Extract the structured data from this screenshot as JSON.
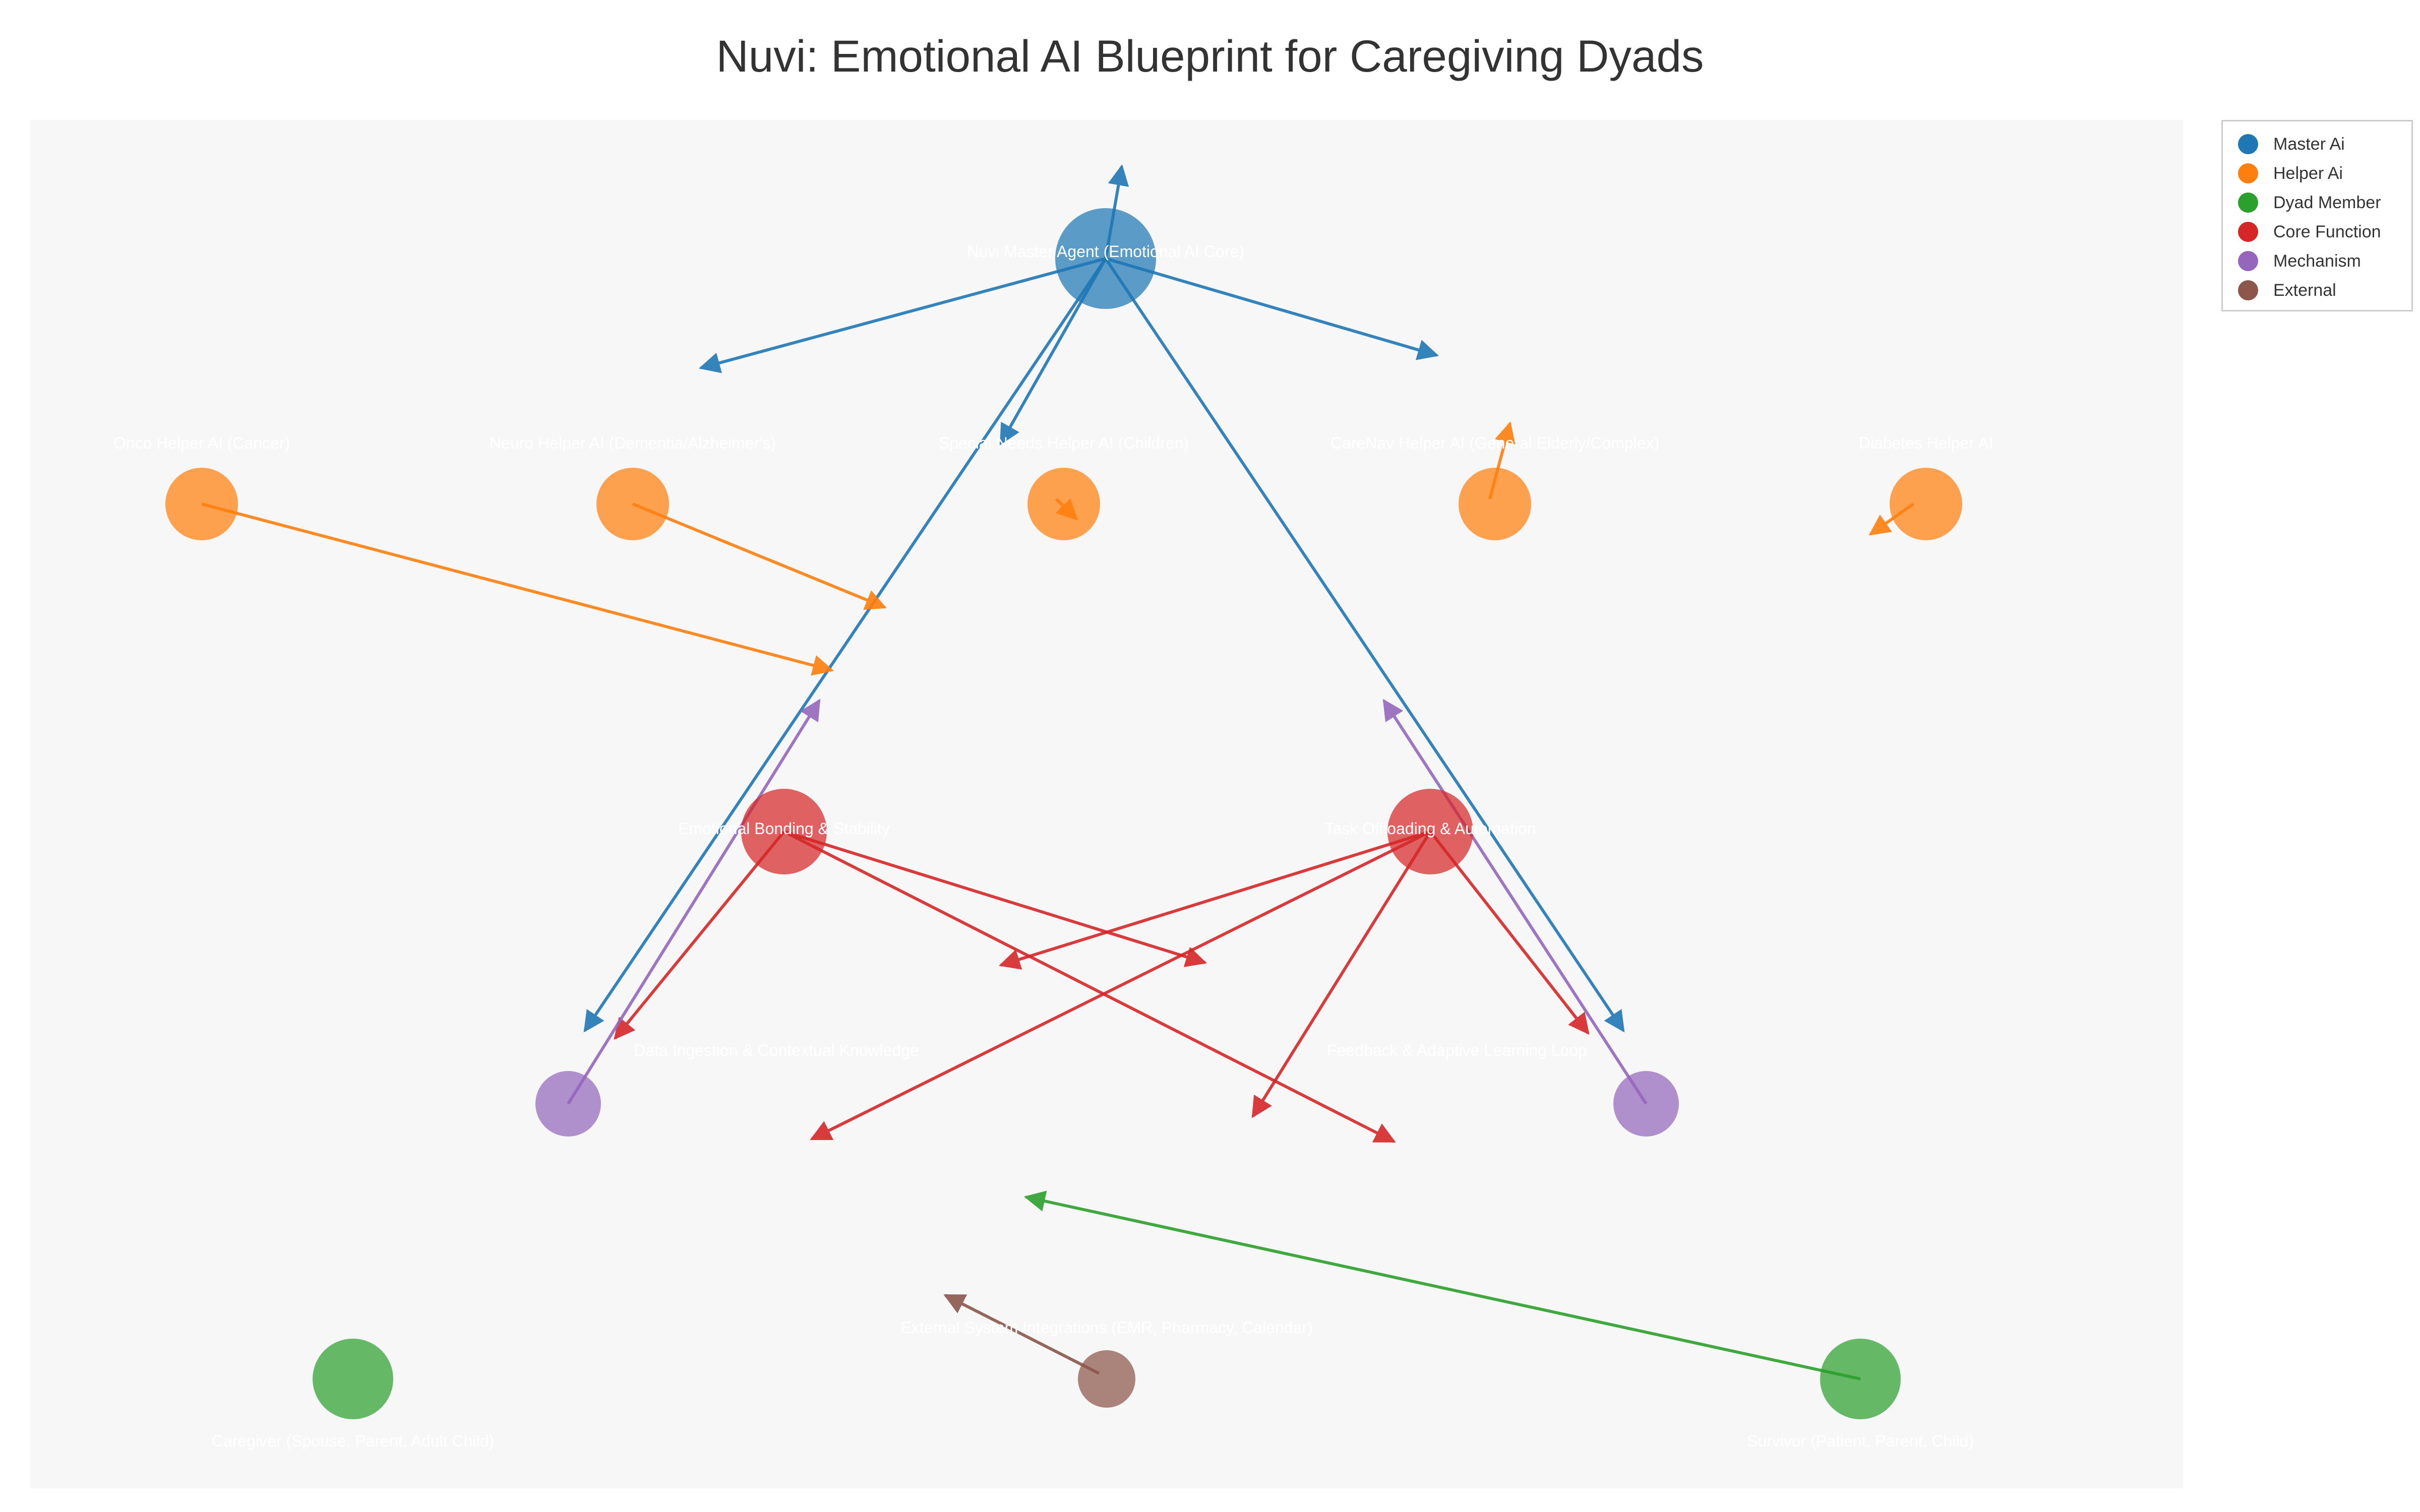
{
  "title": "Nuvi: Emotional AI Blueprint for Caregiving Dyads",
  "legend": [
    {
      "key": "master_ai",
      "label": "Master Ai",
      "color": "#1f77b4"
    },
    {
      "key": "helper_ai",
      "label": "Helper Ai",
      "color": "#ff7f0e"
    },
    {
      "key": "dyad_member",
      "label": "Dyad Member",
      "color": "#2ca02c"
    },
    {
      "key": "core_function",
      "label": "Core Function",
      "color": "#d62728"
    },
    {
      "key": "mechanism",
      "label": "Mechanism",
      "color": "#9467bd"
    },
    {
      "key": "external",
      "label": "External",
      "color": "#8c564b"
    }
  ],
  "nodes": [
    {
      "id": "master",
      "type": "master_ai",
      "label": "Nuvi Master Agent (Emotional AI Core)"
    },
    {
      "id": "onco",
      "type": "helper_ai",
      "label": "Onco Helper AI (Cancer)"
    },
    {
      "id": "neuro",
      "type": "helper_ai",
      "label": "Neuro Helper AI (Dementia/Alzheimer's)"
    },
    {
      "id": "special",
      "type": "helper_ai",
      "label": "Special Needs Helper AI (Children)"
    },
    {
      "id": "carenav",
      "type": "helper_ai",
      "label": "CareNav Helper AI (General Elderly/Complex)"
    },
    {
      "id": "diabetes",
      "type": "helper_ai",
      "label": "Diabetes Helper AI"
    },
    {
      "id": "bonding",
      "type": "core_function",
      "label": "Emotional Bonding & Stability"
    },
    {
      "id": "offload",
      "type": "core_function",
      "label": "Task Offloading & Automation"
    },
    {
      "id": "ingestion",
      "type": "mechanism",
      "label": "Data Ingestion & Contextual Knowledge"
    },
    {
      "id": "feedback",
      "type": "mechanism",
      "label": "Feedback & Adaptive Learning Loop"
    },
    {
      "id": "external",
      "type": "external",
      "label": "External System Integrations (EMR, Pharmacy, Calendar)"
    },
    {
      "id": "caregiver",
      "type": "dyad_member",
      "label": "Caregiver (Spouse, Parent, Adult Child)"
    },
    {
      "id": "survivor",
      "type": "dyad_member",
      "label": "Survivor (Patient, Parent, Child)"
    }
  ],
  "edges": [
    {
      "source": "master",
      "target": "neuro"
    },
    {
      "source": "master",
      "target": "special"
    },
    {
      "source": "master",
      "target": "carenav"
    },
    {
      "source": "master",
      "target": "master"
    },
    {
      "source": "master",
      "target": "ingestion"
    },
    {
      "source": "master",
      "target": "feedback"
    },
    {
      "source": "onco",
      "target": "bonding"
    },
    {
      "source": "neuro",
      "target": "bonding"
    },
    {
      "source": "special",
      "target": "special"
    },
    {
      "source": "carenav",
      "target": "carenav"
    },
    {
      "source": "diabetes",
      "target": "diabetes"
    },
    {
      "source": "bonding",
      "target": "ingestion"
    },
    {
      "source": "bonding",
      "target": "offload"
    },
    {
      "source": "bonding",
      "target": "feedback"
    },
    {
      "source": "offload",
      "target": "ingestion"
    },
    {
      "source": "offload",
      "target": "feedback"
    },
    {
      "source": "offload",
      "target": "bonding"
    },
    {
      "source": "offload",
      "target": "external"
    },
    {
      "source": "ingestion",
      "target": "bonding"
    },
    {
      "source": "feedback",
      "target": "offload"
    },
    {
      "source": "external",
      "target": "external"
    },
    {
      "source": "survivor",
      "target": "external"
    }
  ]
}
